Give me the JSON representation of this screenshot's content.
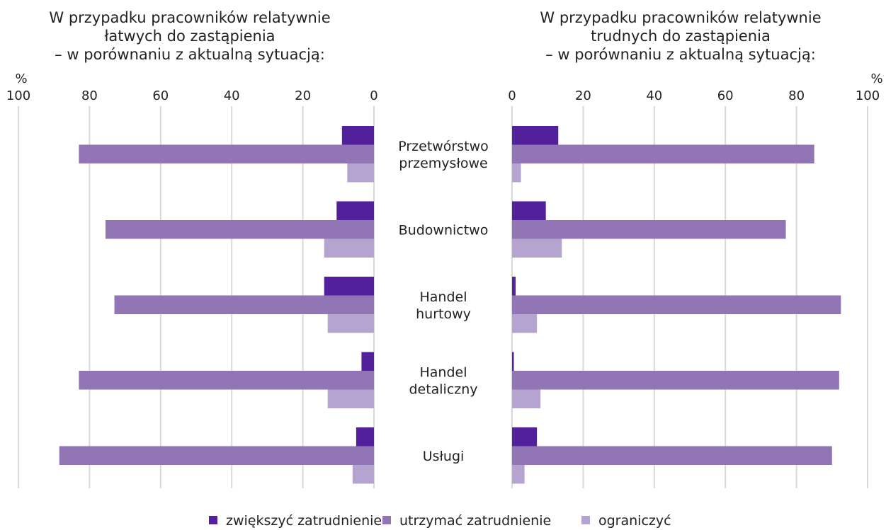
{
  "chart_data": [
    {
      "type": "bar",
      "orientation": "horizontal",
      "direction": "reversed",
      "title_lines": [
        "W przypadku pracowników relatywnie",
        "łatwych do zastąpienia",
        "– w porównaniu z aktualną sytuacją:"
      ],
      "unit_label": "%",
      "xlim": [
        0,
        100
      ],
      "ticks": [
        100,
        80,
        60,
        40,
        20,
        0
      ],
      "grid": true,
      "series": [
        {
          "name": "zwiększyć zatrudnienie",
          "values": [
            9,
            10.5,
            14,
            3.5,
            5
          ]
        },
        {
          "name": "utrzymać zatrudnienie",
          "values": [
            83,
            75.5,
            73,
            83,
            88.5
          ]
        },
        {
          "name": "ograniczyć",
          "values": [
            7.5,
            14,
            13,
            13,
            6
          ]
        }
      ]
    },
    {
      "type": "bar",
      "orientation": "horizontal",
      "direction": "normal",
      "title_lines": [
        "W przypadku pracowników relatywnie",
        "trudnych do zastąpienia",
        "– w porównaniu z aktualną sytuacją:"
      ],
      "unit_label": "%",
      "xlim": [
        0,
        100
      ],
      "ticks": [
        0,
        20,
        40,
        60,
        80,
        100
      ],
      "grid": true,
      "series": [
        {
          "name": "zwiększyć zatrudnienie",
          "values": [
            13,
            9.5,
            1,
            0.5,
            7
          ]
        },
        {
          "name": "utrzymać zatrudnienie",
          "values": [
            85,
            77,
            92.5,
            92,
            90
          ]
        },
        {
          "name": "ograniczyć",
          "values": [
            2.5,
            14,
            7,
            8,
            3.5
          ]
        }
      ]
    }
  ],
  "categories": [
    [
      "Przetwórstwo",
      "przemysłowe"
    ],
    [
      "Budownictwo"
    ],
    [
      "Handel",
      "hurtowy"
    ],
    [
      "Handel",
      "detaliczny"
    ],
    [
      "Usługi"
    ]
  ],
  "colors": [
    "#51209a",
    "#9175b5",
    "#b5a3d0"
  ],
  "grid_color": "#d9d9d9",
  "legend": {
    "items": [
      "zwiększyć zatrudnienie",
      "utrzymać zatrudnienie",
      "ograniczyć"
    ],
    "position": "bottom-center"
  }
}
